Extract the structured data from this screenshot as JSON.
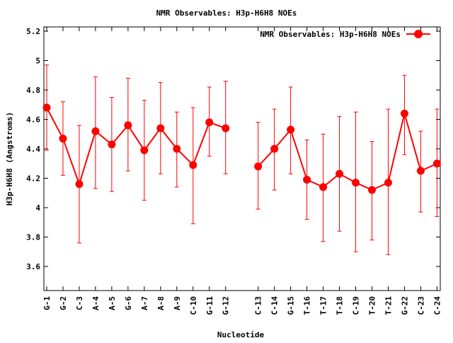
{
  "chart_data": {
    "type": "line",
    "title": "NMR Observables: H3p-H6H8 NOEs",
    "xlabel": "Nucleotide",
    "ylabel": "H3p-H6H8 (Angstroms)",
    "ylim": [
      3.436,
      5.229
    ],
    "xlim": [
      0.826,
      25.2
    ],
    "yticks": [
      3.6,
      3.8,
      4,
      4.2,
      4.4,
      4.6,
      4.8,
      5,
      5.2
    ],
    "ytick_labels": [
      "3.6",
      "3.8",
      "4",
      "4.2",
      "4.4",
      "4.6",
      "4.8",
      "5",
      "5.2"
    ],
    "grid": false,
    "legend": {
      "position": "top-right",
      "label": "NMR Observables: H3p-H6H8 NOEs"
    },
    "color": "#ff0000",
    "x": [
      1,
      2,
      3,
      4,
      5,
      6,
      7,
      8,
      9,
      10,
      11,
      12,
      14,
      15,
      16,
      17,
      18,
      19,
      20,
      21,
      22,
      23,
      24,
      25
    ],
    "categories": [
      "G-1",
      "G-2",
      "C-3",
      "A-4",
      "A-5",
      "G-6",
      "A-7",
      "A-8",
      "A-9",
      "C-10",
      "G-11",
      "G-12",
      "C-13",
      "C-14",
      "G-15",
      "T-16",
      "T-17",
      "T-18",
      "C-19",
      "T-20",
      "T-21",
      "G-22",
      "C-23",
      "C-24"
    ],
    "values": [
      4.68,
      4.47,
      4.16,
      4.52,
      4.43,
      4.56,
      4.39,
      4.54,
      4.4,
      4.29,
      4.58,
      4.54,
      4.28,
      4.4,
      4.53,
      4.19,
      4.14,
      4.23,
      4.17,
      4.12,
      4.17,
      4.64,
      4.25,
      4.3
    ],
    "err_high": [
      4.97,
      4.72,
      4.56,
      4.89,
      4.75,
      4.88,
      4.73,
      4.85,
      4.65,
      4.68,
      4.82,
      4.86,
      4.58,
      4.67,
      4.82,
      4.46,
      4.5,
      4.62,
      4.65,
      4.45,
      4.67,
      4.9,
      4.52,
      4.67
    ],
    "err_low": [
      4.39,
      4.22,
      3.76,
      4.13,
      4.11,
      4.25,
      4.05,
      4.23,
      4.14,
      3.89,
      4.35,
      4.23,
      3.99,
      4.12,
      4.23,
      3.92,
      3.77,
      3.84,
      3.7,
      3.78,
      3.68,
      4.36,
      3.97,
      3.94
    ],
    "segments": [
      [
        0,
        11
      ],
      [
        12,
        23
      ]
    ]
  }
}
